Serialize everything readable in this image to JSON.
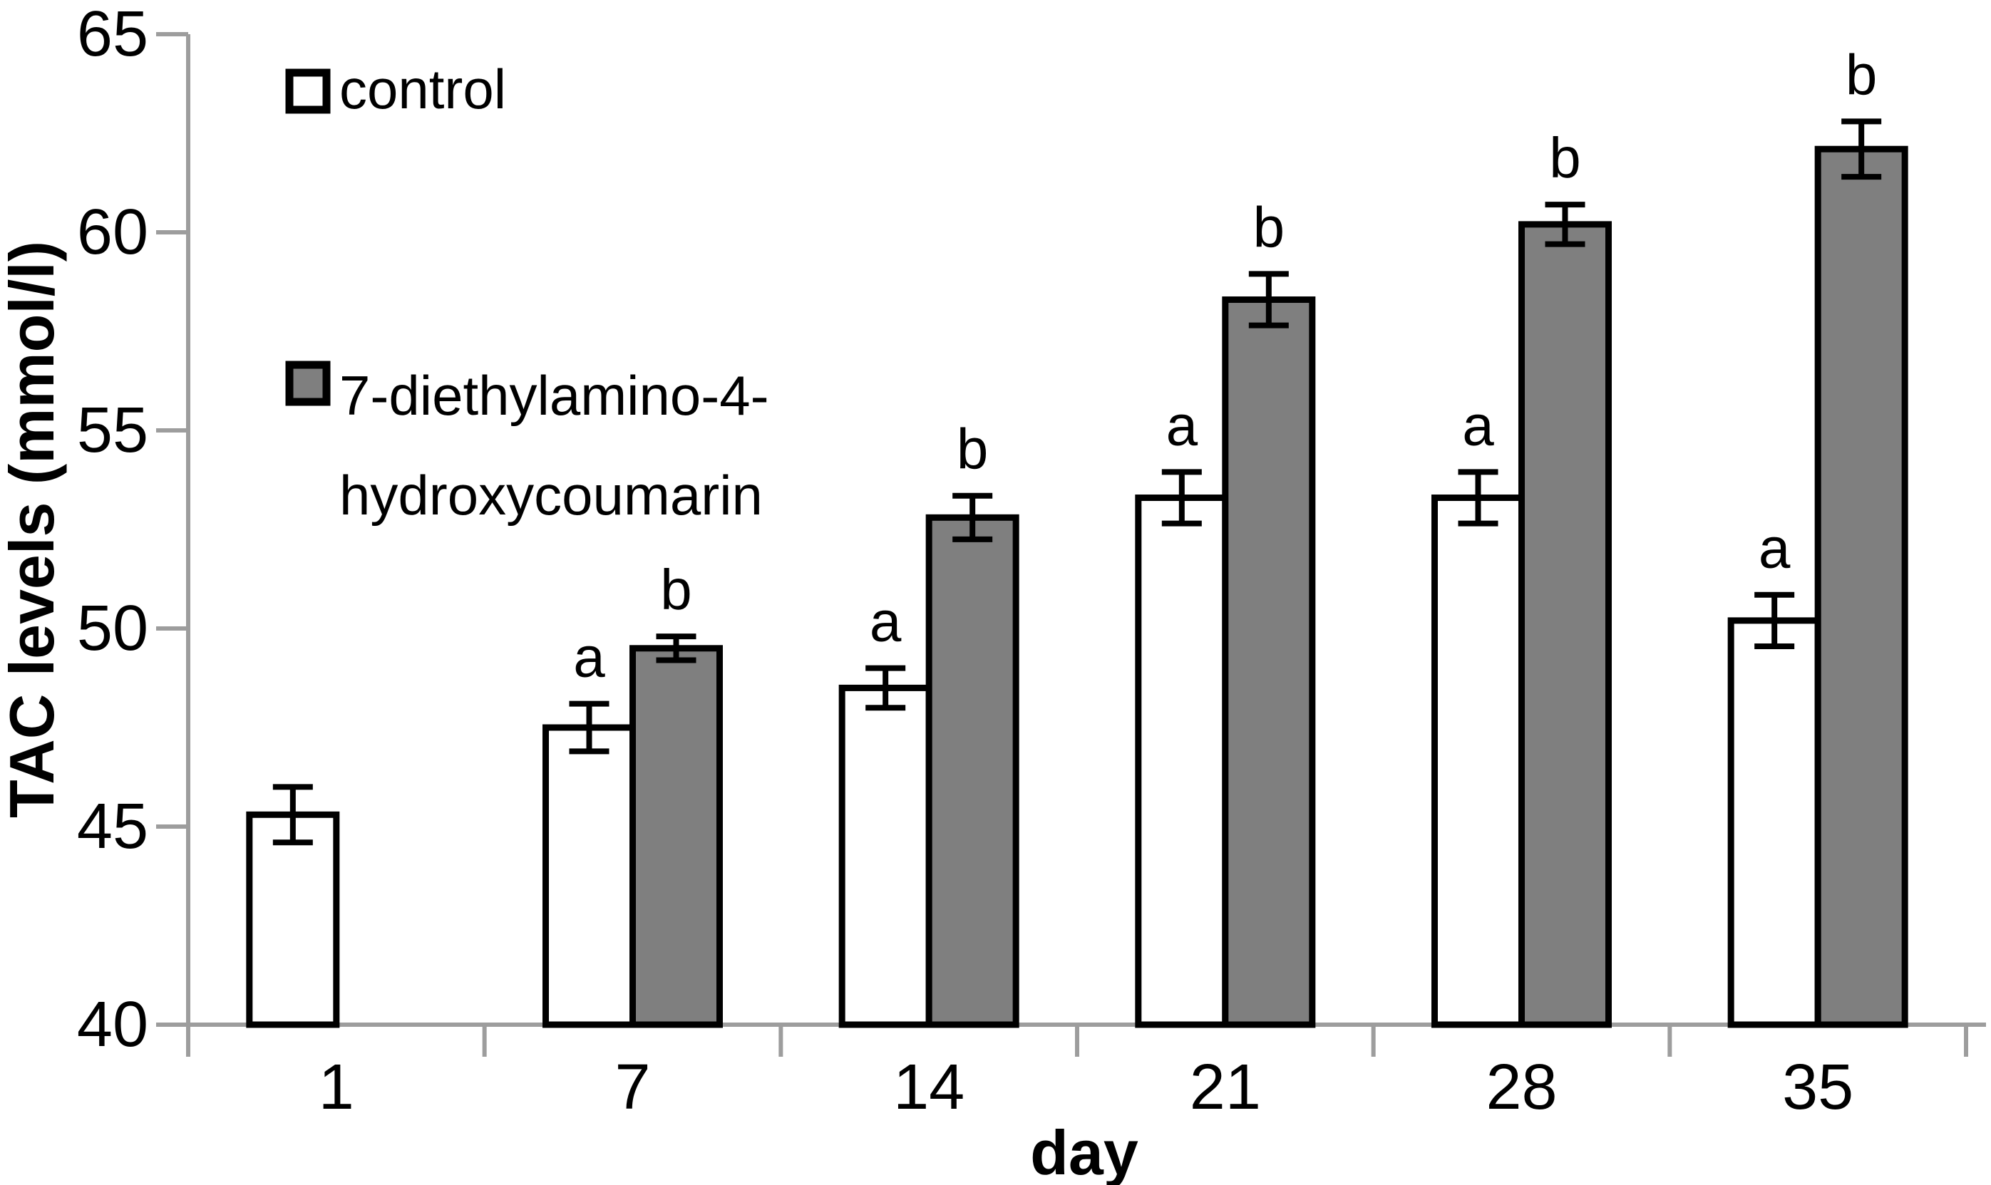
{
  "figure": {
    "kind": "bar-chart-with-error-bars",
    "background": "#ffffff"
  },
  "style": {
    "axis_color": "#9d9d9d",
    "bar_stroke_color": "#000000",
    "error_bar_color": "#000000",
    "text_color": "#000000",
    "control_fill": "#ffffff",
    "treatment_fill": "#7f7f7f"
  },
  "chart_data": {
    "type": "bar",
    "title": "",
    "xlabel": "day",
    "ylabel": "TAC levels (mmol/l)",
    "ylim": [
      40,
      65
    ],
    "yticks": [
      40,
      45,
      50,
      55,
      60,
      65
    ],
    "grid": false,
    "legend_position": "upper-left-inside",
    "categories": [
      "1",
      "7",
      "14",
      "21",
      "28",
      "35"
    ],
    "series": [
      {
        "name": "control",
        "fill": "#ffffff",
        "stroke": "#000000",
        "values": [
          45.3,
          47.5,
          48.5,
          53.3,
          53.3,
          50.2
        ],
        "errors": [
          0.7,
          0.6,
          0.5,
          0.65,
          0.65,
          0.65
        ],
        "sig_letters": [
          "",
          "a",
          "a",
          "a",
          "a",
          "a"
        ]
      },
      {
        "name": "7-diethylamino-4-hydroxycoumarin",
        "fill": "#7f7f7f",
        "stroke": "#000000",
        "values": [
          null,
          49.5,
          52.8,
          58.3,
          60.2,
          62.1
        ],
        "errors": [
          null,
          0.3,
          0.55,
          0.65,
          0.5,
          0.7
        ],
        "sig_letters": [
          "",
          "b",
          "b",
          "b",
          "b",
          "b"
        ]
      }
    ],
    "legend": [
      {
        "label": "control",
        "swatch": "#ffffff",
        "lines": [
          "control"
        ]
      },
      {
        "label": "7-diethylamino-4-hydroxycoumarin",
        "swatch": "#7f7f7f",
        "lines": [
          "7-diethylamino-4-",
          "hydroxycoumarin"
        ]
      }
    ]
  }
}
